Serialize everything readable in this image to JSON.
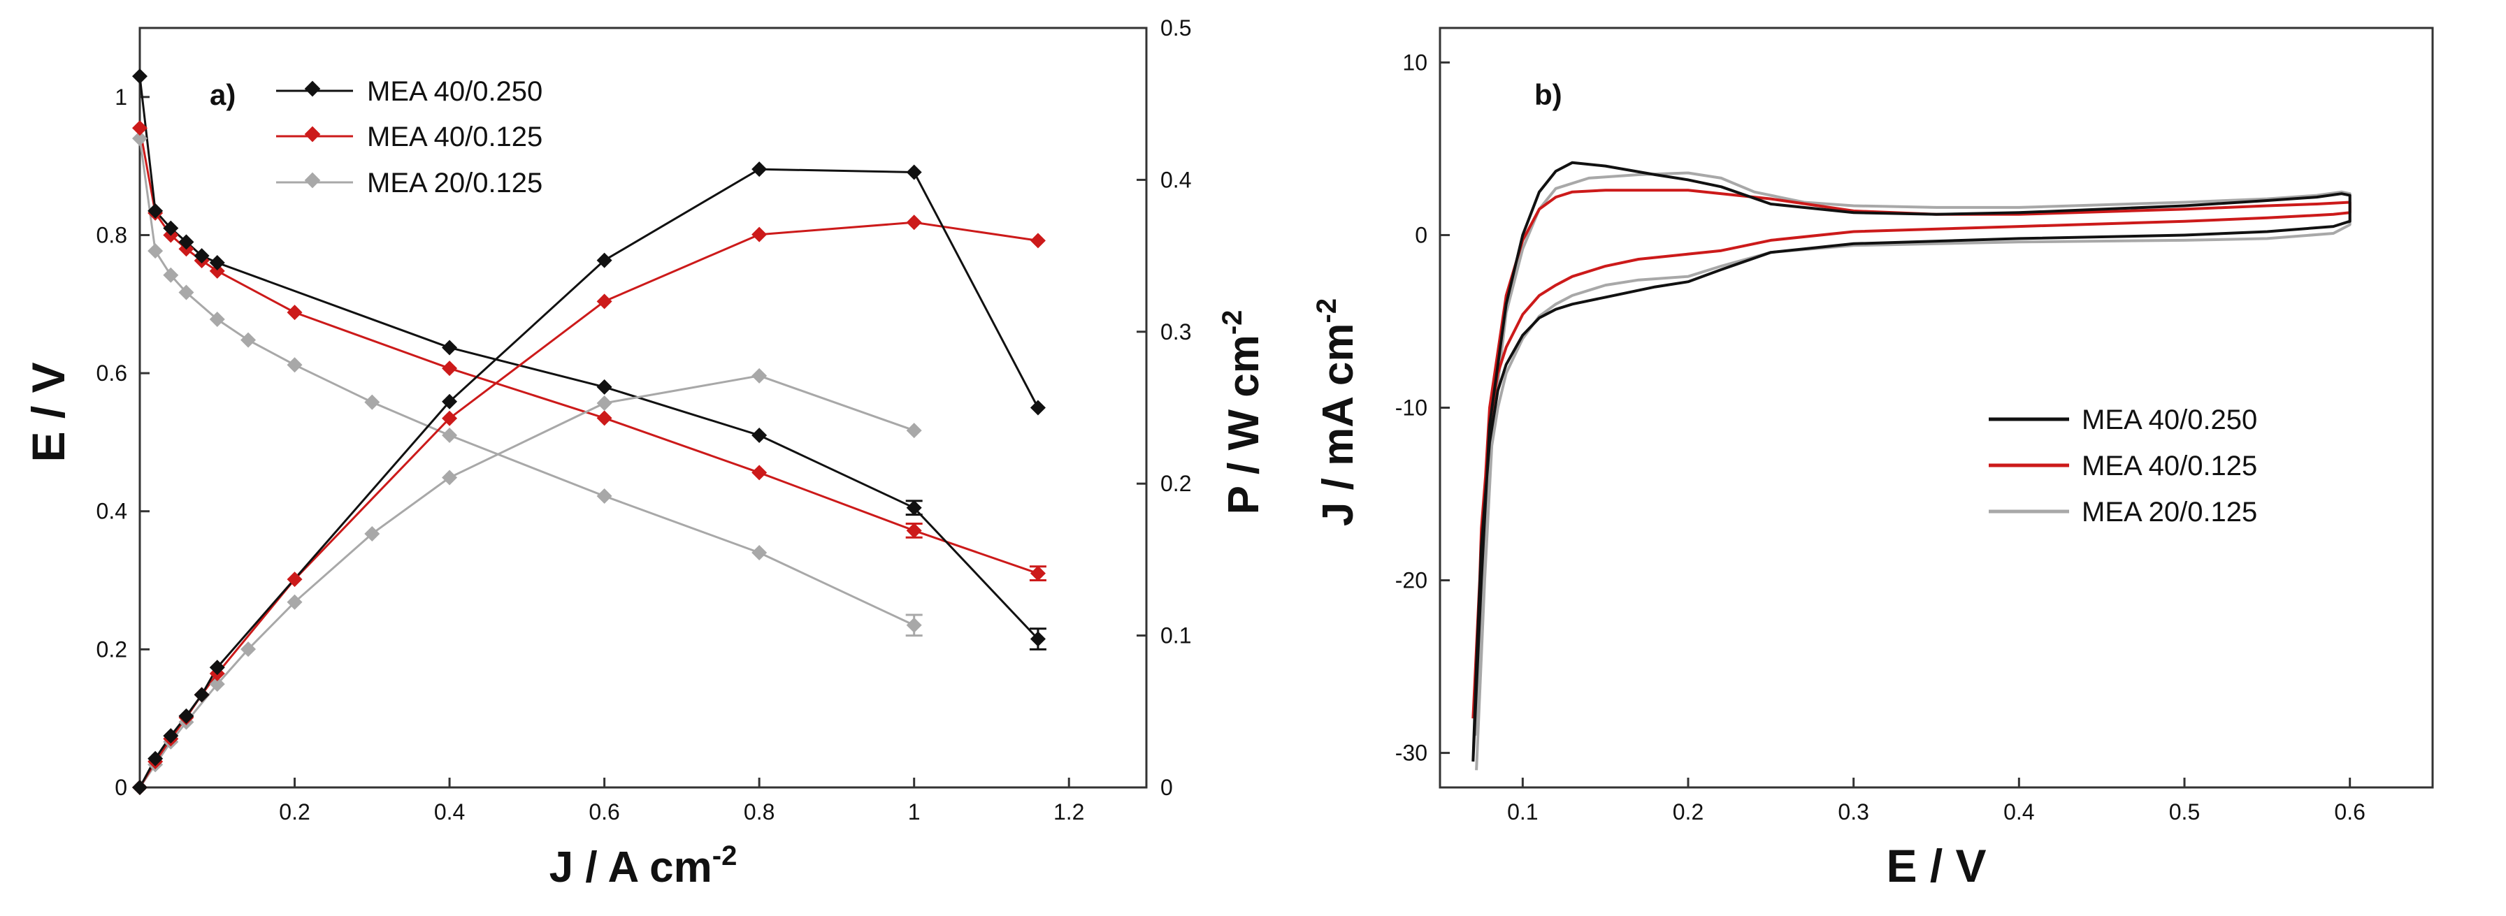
{
  "colors": {
    "black": "#111111",
    "red": "#cc1a1a",
    "gray": "#a8a8a8",
    "axis": "#333333"
  },
  "chart_data": [
    {
      "panel_label": "a)",
      "type": "line",
      "xlabel_main": "J / A cm",
      "xlabel_sup": "-2",
      "ylabel": "E / V",
      "y2label_main": "P / W cm",
      "y2label_sup": "-2",
      "xlim": [
        0,
        1.3
      ],
      "ylim": [
        0,
        1.1
      ],
      "y2lim": [
        0,
        0.5
      ],
      "x_ticks": [
        "0.2",
        "0.4",
        "0.6",
        "0.8",
        "1",
        "1.2"
      ],
      "y_ticks": [
        "0",
        "0.2",
        "0.4",
        "0.6",
        "0.8",
        "1"
      ],
      "y2_ticks": [
        "0",
        "0.1",
        "0.2",
        "0.3",
        "0.4",
        "0.5"
      ],
      "legend": [
        "MEA 40/0.250",
        "MEA 40/0.125",
        "MEA 20/0.125"
      ],
      "polarization_series": [
        {
          "name": "MEA 40/0.250",
          "color": "black",
          "x": [
            0,
            0.02,
            0.04,
            0.06,
            0.08,
            0.1,
            0.4,
            0.6,
            0.8,
            1.0,
            1.16
          ],
          "y": [
            1.03,
            0.835,
            0.81,
            0.79,
            0.77,
            0.76,
            0.637,
            0.58,
            0.51,
            0.405,
            0.215
          ],
          "err": [
            0,
            0,
            0,
            0,
            0,
            0,
            0,
            0,
            0,
            0.01,
            0.015
          ]
        },
        {
          "name": "MEA 40/0.125",
          "color": "red",
          "x": [
            0,
            0.02,
            0.04,
            0.06,
            0.08,
            0.1,
            0.2,
            0.4,
            0.6,
            0.8,
            1.0,
            1.16
          ],
          "y": [
            0.955,
            0.832,
            0.8,
            0.78,
            0.763,
            0.748,
            0.688,
            0.607,
            0.535,
            0.456,
            0.372,
            0.31
          ],
          "err": [
            0,
            0,
            0,
            0,
            0,
            0,
            0,
            0,
            0,
            0,
            0.01,
            0.01
          ]
        },
        {
          "name": "MEA 20/0.125",
          "color": "gray",
          "x": [
            0,
            0.02,
            0.04,
            0.06,
            0.1,
            0.14,
            0.2,
            0.3,
            0.4,
            0.6,
            0.8,
            1.0
          ],
          "y": [
            0.94,
            0.777,
            0.742,
            0.717,
            0.678,
            0.648,
            0.612,
            0.558,
            0.51,
            0.422,
            0.34,
            0.235
          ],
          "err": [
            0,
            0,
            0,
            0,
            0,
            0,
            0,
            0,
            0,
            0,
            0,
            0.015
          ]
        }
      ],
      "power_series": [
        {
          "name": "MEA 40/0.250",
          "color": "black",
          "x": [
            0,
            0.02,
            0.04,
            0.06,
            0.08,
            0.1,
            0.4,
            0.6,
            0.8,
            1.0,
            1.16
          ],
          "y": [
            0,
            0.019,
            0.034,
            0.047,
            0.061,
            0.079,
            0.254,
            0.347,
            0.407,
            0.405,
            0.25
          ]
        },
        {
          "name": "MEA 40/0.125",
          "color": "red",
          "x": [
            0,
            0.02,
            0.04,
            0.06,
            0.08,
            0.1,
            0.2,
            0.4,
            0.6,
            0.8,
            1.0,
            1.16
          ],
          "y": [
            0,
            0.017,
            0.032,
            0.046,
            0.061,
            0.075,
            0.137,
            0.243,
            0.32,
            0.364,
            0.372,
            0.36
          ]
        },
        {
          "name": "MEA 20/0.125",
          "color": "gray",
          "x": [
            0,
            0.02,
            0.04,
            0.06,
            0.1,
            0.14,
            0.2,
            0.3,
            0.4,
            0.6,
            0.8,
            1.0
          ],
          "y": [
            0,
            0.015,
            0.03,
            0.043,
            0.068,
            0.091,
            0.122,
            0.167,
            0.204,
            0.253,
            0.271,
            0.235
          ]
        }
      ]
    },
    {
      "panel_label": "b)",
      "type": "line",
      "xlabel": "E / V",
      "ylabel_main": "J / mA cm",
      "ylabel_sup": "-2",
      "xlim": [
        0.05,
        0.65
      ],
      "ylim": [
        -32,
        12
      ],
      "x_ticks": [
        "0.1",
        "0.2",
        "0.3",
        "0.4",
        "0.5",
        "0.6"
      ],
      "y_ticks": [
        "10",
        "0",
        "-10",
        "-20",
        "-30"
      ],
      "legend": [
        "MEA 40/0.250",
        "MEA 40/0.125",
        "MEA 20/0.125"
      ],
      "series": [
        {
          "name": "MEA 40/0.250",
          "color": "black",
          "x": [
            0.07,
            0.075,
            0.08,
            0.09,
            0.1,
            0.11,
            0.12,
            0.13,
            0.15,
            0.18,
            0.2,
            0.22,
            0.25,
            0.3,
            0.35,
            0.4,
            0.5,
            0.55,
            0.58,
            0.595,
            0.6,
            0.6,
            0.59,
            0.55,
            0.5,
            0.4,
            0.3,
            0.25,
            0.22,
            0.2,
            0.18,
            0.15,
            0.13,
            0.12,
            0.11,
            0.1,
            0.09,
            0.085,
            0.08,
            0.075,
            0.072,
            0.07
          ],
          "y": [
            -30.5,
            -20,
            -11,
            -4,
            0,
            2.5,
            3.7,
            4.2,
            4.0,
            3.5,
            3.2,
            2.8,
            1.8,
            1.3,
            1.2,
            1.3,
            1.7,
            2.0,
            2.2,
            2.4,
            2.3,
            0.8,
            0.5,
            0.2,
            0,
            -0.2,
            -0.5,
            -1.0,
            -2.0,
            -2.7,
            -3.0,
            -3.6,
            -4.0,
            -4.3,
            -4.8,
            -5.8,
            -7.5,
            -9,
            -12,
            -18,
            -25,
            -30.5
          ]
        },
        {
          "name": "MEA 40/0.125",
          "color": "red",
          "x": [
            0.07,
            0.075,
            0.08,
            0.09,
            0.1,
            0.11,
            0.12,
            0.13,
            0.15,
            0.2,
            0.25,
            0.3,
            0.35,
            0.4,
            0.5,
            0.55,
            0.58,
            0.6,
            0.6,
            0.59,
            0.55,
            0.5,
            0.4,
            0.3,
            0.25,
            0.22,
            0.2,
            0.17,
            0.15,
            0.13,
            0.12,
            0.11,
            0.1,
            0.09,
            0.085,
            0.08,
            0.075,
            0.072
          ],
          "y": [
            -28,
            -18,
            -10,
            -3.5,
            -0.3,
            1.5,
            2.2,
            2.5,
            2.6,
            2.6,
            2.1,
            1.4,
            1.2,
            1.2,
            1.5,
            1.7,
            1.8,
            1.9,
            1.3,
            1.2,
            1.0,
            0.8,
            0.5,
            0.2,
            -0.3,
            -0.9,
            -1.1,
            -1.4,
            -1.8,
            -2.4,
            -2.9,
            -3.5,
            -4.6,
            -6.5,
            -8,
            -11,
            -17,
            -26
          ]
        },
        {
          "name": "MEA 20/0.125",
          "color": "gray",
          "x": [
            0.072,
            0.077,
            0.082,
            0.09,
            0.1,
            0.11,
            0.12,
            0.14,
            0.17,
            0.2,
            0.22,
            0.24,
            0.27,
            0.3,
            0.35,
            0.4,
            0.5,
            0.55,
            0.58,
            0.595,
            0.6,
            0.6,
            0.59,
            0.55,
            0.5,
            0.4,
            0.3,
            0.25,
            0.22,
            0.2,
            0.17,
            0.15,
            0.13,
            0.12,
            0.11,
            0.1,
            0.09,
            0.085,
            0.08,
            0.076,
            0.072
          ],
          "y": [
            -31,
            -20,
            -11,
            -4.5,
            -0.8,
            1.5,
            2.7,
            3.3,
            3.5,
            3.6,
            3.3,
            2.5,
            1.9,
            1.7,
            1.6,
            1.6,
            1.9,
            2.1,
            2.3,
            2.5,
            2.4,
            0.6,
            0.1,
            -0.2,
            -0.3,
            -0.4,
            -0.6,
            -1.0,
            -1.8,
            -2.4,
            -2.6,
            -2.9,
            -3.5,
            -4.0,
            -4.7,
            -6.0,
            -8.0,
            -10,
            -13,
            -19,
            -29
          ]
        }
      ]
    }
  ]
}
